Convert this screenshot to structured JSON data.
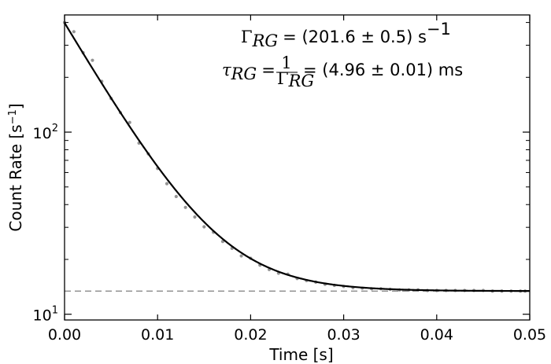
{
  "chart_data": {
    "type": "scatter",
    "xlabel": "Time [s]",
    "ylabel": "Count Rate [s",
    "ylabel_sup": "−1",
    "ylabel_close": "]",
    "xlim": [
      0.0,
      0.05
    ],
    "ylim": [
      9.3,
      440
    ],
    "yscale": "log",
    "grid": false,
    "x_ticks": [
      {
        "value": 0.0,
        "label": "0.00"
      },
      {
        "value": 0.01,
        "label": "0.01"
      },
      {
        "value": 0.02,
        "label": "0.02"
      },
      {
        "value": 0.03,
        "label": "0.03"
      },
      {
        "value": 0.04,
        "label": "0.04"
      },
      {
        "value": 0.05,
        "label": "0.05"
      }
    ],
    "y_ticks": [
      {
        "value": 10,
        "label": "10",
        "exp": "1"
      },
      {
        "value": 100,
        "label": "10",
        "exp": "2"
      }
    ],
    "fit": {
      "model": "A*exp(-Gamma*t)+B",
      "A": 385,
      "Gamma": 201.6,
      "B": 13.4,
      "color": "#000000"
    },
    "baseline": {
      "value": 13.4,
      "style": "dashed",
      "color": "#7f7f7f"
    },
    "data_points": [
      [
        0.0,
        400
      ],
      [
        0.001,
        356
      ],
      [
        0.002,
        273
      ],
      [
        0.003,
        248
      ],
      [
        0.004,
        190
      ],
      [
        0.005,
        153
      ],
      [
        0.006,
        128
      ],
      [
        0.007,
        113
      ],
      [
        0.008,
        87
      ],
      [
        0.009,
        76
      ],
      [
        0.01,
        63.2
      ],
      [
        0.011,
        52.1
      ],
      [
        0.012,
        44.3
      ],
      [
        0.013,
        38.6
      ],
      [
        0.014,
        34.2
      ],
      [
        0.015,
        30.2
      ],
      [
        0.016,
        28.2
      ],
      [
        0.017,
        25.1
      ],
      [
        0.018,
        23.0
      ],
      [
        0.019,
        20.9
      ],
      [
        0.02,
        20.3
      ],
      [
        0.021,
        18.6
      ],
      [
        0.022,
        17.6
      ],
      [
        0.023,
        16.8
      ],
      [
        0.024,
        16.6
      ],
      [
        0.025,
        15.7
      ],
      [
        0.026,
        15.3
      ],
      [
        0.027,
        15.0
      ],
      [
        0.028,
        14.6
      ],
      [
        0.029,
        14.4
      ],
      [
        0.03,
        14.2
      ],
      [
        0.031,
        14.0
      ],
      [
        0.032,
        13.9
      ],
      [
        0.033,
        13.8
      ],
      [
        0.034,
        13.8
      ],
      [
        0.035,
        13.7
      ],
      [
        0.036,
        13.6
      ],
      [
        0.037,
        13.6
      ],
      [
        0.038,
        13.6
      ],
      [
        0.039,
        13.5
      ],
      [
        0.04,
        13.5
      ],
      [
        0.041,
        13.5
      ],
      [
        0.042,
        13.5
      ],
      [
        0.043,
        13.5
      ],
      [
        0.044,
        13.5
      ],
      [
        0.045,
        13.5
      ],
      [
        0.046,
        13.4
      ],
      [
        0.047,
        13.4
      ],
      [
        0.048,
        13.4
      ],
      [
        0.049,
        13.4
      ],
      [
        0.0495,
        13.4
      ]
    ],
    "point_color": "#888888",
    "annotations": {
      "gamma_symbol": "Γ",
      "gamma_sub": "RG",
      "gamma_value": "= (201.6 ± 0.5) s",
      "gamma_unit_sup": "−1",
      "tau_symbol": "τ",
      "tau_sub": "RG",
      "tau_eq": "=",
      "tau_frac_num": "1",
      "tau_frac_den": "Γ",
      "tau_frac_den_sub": "RG",
      "tau_value": "= (4.96 ± 0.01) ms"
    }
  }
}
